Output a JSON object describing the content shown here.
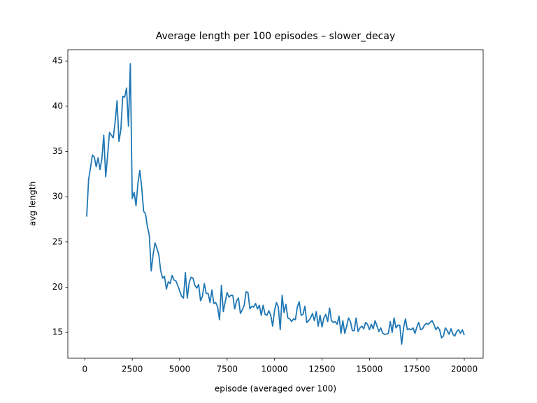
{
  "chart_data": {
    "type": "line",
    "title": "Average length per 100 episodes – slower_decay",
    "x_label": "episode (averaged over 100)",
    "y_label": "avg length",
    "xlim": [
      -895,
      20995
    ],
    "ylim": [
      12.15,
      46.25
    ],
    "xticks": [
      0,
      2500,
      5000,
      7500,
      10000,
      12500,
      15000,
      17500,
      20000
    ],
    "yticks": [
      15,
      20,
      25,
      30,
      35,
      40,
      45
    ],
    "grid": false,
    "x": [
      100,
      200,
      300,
      400,
      500,
      600,
      700,
      800,
      900,
      1000,
      1100,
      1200,
      1300,
      1400,
      1500,
      1600,
      1700,
      1800,
      1900,
      2000,
      2100,
      2200,
      2300,
      2400,
      2500,
      2600,
      2700,
      2800,
      2900,
      3000,
      3100,
      3200,
      3300,
      3400,
      3500,
      3600,
      3700,
      3800,
      3900,
      4000,
      4100,
      4200,
      4300,
      4400,
      4500,
      4600,
      4700,
      4800,
      4900,
      5000,
      5100,
      5200,
      5300,
      5400,
      5500,
      5600,
      5700,
      5800,
      5900,
      6000,
      6100,
      6200,
      6300,
      6400,
      6500,
      6600,
      6700,
      6800,
      6900,
      7000,
      7100,
      7200,
      7300,
      7400,
      7500,
      7600,
      7700,
      7800,
      7900,
      8000,
      8100,
      8200,
      8300,
      8400,
      8500,
      8600,
      8700,
      8800,
      8900,
      9000,
      9100,
      9200,
      9300,
      9400,
      9500,
      9600,
      9700,
      9800,
      9900,
      10000,
      10100,
      10200,
      10300,
      10400,
      10500,
      10600,
      10700,
      10800,
      10900,
      11000,
      11100,
      11200,
      11300,
      11400,
      11500,
      11600,
      11700,
      11800,
      11900,
      12000,
      12100,
      12200,
      12300,
      12400,
      12500,
      12600,
      12700,
      12800,
      12900,
      13000,
      13100,
      13200,
      13300,
      13400,
      13500,
      13600,
      13700,
      13800,
      13900,
      14000,
      14100,
      14200,
      14300,
      14400,
      14500,
      14600,
      14700,
      14800,
      14900,
      15000,
      15100,
      15200,
      15300,
      15400,
      15500,
      15600,
      15700,
      15800,
      15900,
      16000,
      16100,
      16200,
      16300,
      16400,
      16500,
      16600,
      16700,
      16800,
      16900,
      17000,
      17100,
      17200,
      17300,
      17400,
      17500,
      17600,
      17700,
      17800,
      17900,
      18000,
      18100,
      18200,
      18300,
      18400,
      18500,
      18600,
      18700,
      18800,
      18900,
      19000,
      19100,
      19200,
      19300,
      19400,
      19500,
      19600,
      19700,
      19800,
      19900,
      20000
    ],
    "series": [
      {
        "color": "#1f77b4",
        "values": [
          27.8,
          31.9,
          33.2,
          34.6,
          34.4,
          33.3,
          34.3,
          33.0,
          34.2,
          36.8,
          32.2,
          34.5,
          37.1,
          36.8,
          36.5,
          38.3,
          40.6,
          36.1,
          37.4,
          41.1,
          41.0,
          42.0,
          37.8,
          44.7,
          29.8,
          30.5,
          29.0,
          31.5,
          32.9,
          31.0,
          28.4,
          28.1,
          26.7,
          25.7,
          21.8,
          23.6,
          24.9,
          24.3,
          23.6,
          21.8,
          21.0,
          21.2,
          19.8,
          20.6,
          20.4,
          21.3,
          20.8,
          20.7,
          20.2,
          19.6,
          19.0,
          18.8,
          21.6,
          18.8,
          20.5,
          21.1,
          21.0,
          20.2,
          19.9,
          20.3,
          18.5,
          19.0,
          20.4,
          19.3,
          19.3,
          18.3,
          19.7,
          18.2,
          18.3,
          17.8,
          16.4,
          20.2,
          17.3,
          18.4,
          19.4,
          18.9,
          19.1,
          19.1,
          17.6,
          18.5,
          18.8,
          17.1,
          17.5,
          18.0,
          19.5,
          19.4,
          17.6,
          17.9,
          17.8,
          18.2,
          17.6,
          18.0,
          16.9,
          18.0,
          17.0,
          16.9,
          17.4,
          16.9,
          15.7,
          17.4,
          18.3,
          17.8,
          15.3,
          19.1,
          17.2,
          18.1,
          16.6,
          16.5,
          16.2,
          16.5,
          16.4,
          17.8,
          18.4,
          16.9,
          17.0,
          17.9,
          16.1,
          16.3,
          16.6,
          17.1,
          16.3,
          17.3,
          15.7,
          16.9,
          15.6,
          16.6,
          17.0,
          16.2,
          17.7,
          16.3,
          16.1,
          16.2,
          15.9,
          16.8,
          14.9,
          16.3,
          14.9,
          15.7,
          16.6,
          16.2,
          15.2,
          15.2,
          16.6,
          15.1,
          15.5,
          15.7,
          15.4,
          16.1,
          15.9,
          15.3,
          15.9,
          15.4,
          16.3,
          15.7,
          15.1,
          15.5,
          14.9,
          14.8,
          14.8,
          14.9,
          16.2,
          15.0,
          16.6,
          15.5,
          15.8,
          15.8,
          13.7,
          15.5,
          16.5,
          15.3,
          15.4,
          15.3,
          15.5,
          14.9,
          15.6,
          16.1,
          15.3,
          15.4,
          15.8,
          16.0,
          15.9,
          16.1,
          16.3,
          15.9,
          15.3,
          15.6,
          15.3,
          14.4,
          14.6,
          15.5,
          15.2,
          14.8,
          15.4,
          14.8,
          14.6,
          15.1,
          15.3,
          14.9,
          15.3,
          14.7
        ]
      }
    ]
  }
}
